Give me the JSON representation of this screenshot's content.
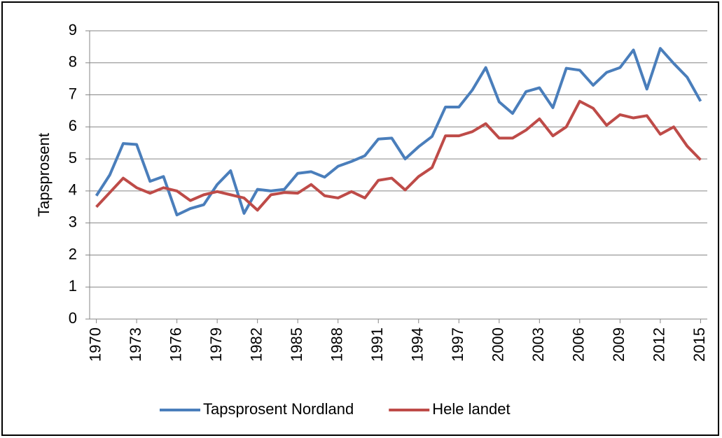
{
  "chart_data": {
    "type": "line",
    "y_label": "Tapsprosent",
    "x": [
      1970,
      1971,
      1972,
      1973,
      1974,
      1975,
      1976,
      1977,
      1978,
      1979,
      1980,
      1981,
      1982,
      1983,
      1984,
      1985,
      1986,
      1987,
      1988,
      1989,
      1990,
      1991,
      1992,
      1993,
      1994,
      1995,
      1996,
      1997,
      1998,
      1999,
      2000,
      2001,
      2002,
      2003,
      2004,
      2005,
      2006,
      2007,
      2008,
      2009,
      2010,
      2011,
      2012,
      2013,
      2014,
      2015
    ],
    "series": [
      {
        "name": "Tapsprosent Nordland",
        "color": "#4a7ebb",
        "values": [
          3.85,
          4.5,
          5.48,
          5.45,
          4.3,
          4.45,
          3.25,
          3.45,
          3.57,
          4.2,
          4.63,
          3.3,
          4.05,
          4.0,
          4.05,
          4.55,
          4.6,
          4.43,
          4.77,
          4.92,
          5.1,
          5.62,
          5.65,
          5.0,
          5.38,
          5.7,
          6.62,
          6.62,
          7.15,
          7.85,
          6.78,
          6.42,
          7.1,
          7.22,
          6.6,
          7.83,
          7.77,
          7.3,
          7.7,
          7.85,
          8.4,
          7.18,
          8.45,
          7.98,
          7.55,
          6.8
        ]
      },
      {
        "name": "Hele landet",
        "color": "#be4b48",
        "values": [
          3.5,
          3.95,
          4.4,
          4.1,
          3.93,
          4.1,
          4.0,
          3.7,
          3.88,
          3.98,
          3.88,
          3.78,
          3.4,
          3.88,
          3.95,
          3.93,
          4.2,
          3.85,
          3.78,
          3.98,
          3.78,
          4.33,
          4.4,
          4.03,
          4.45,
          4.73,
          5.72,
          5.72,
          5.85,
          6.1,
          5.65,
          5.65,
          5.9,
          6.25,
          5.72,
          6.0,
          6.8,
          6.58,
          6.05,
          6.38,
          6.28,
          6.35,
          5.77,
          6.0,
          5.4,
          4.97
        ]
      }
    ],
    "xlim": [
      1969.5,
      2015.5
    ],
    "xticks": [
      1970,
      1973,
      1976,
      1979,
      1982,
      1985,
      1988,
      1991,
      1994,
      1997,
      2000,
      2003,
      2006,
      2009,
      2012,
      2015
    ],
    "ylim": [
      0,
      9
    ],
    "yticks": [
      0,
      1,
      2,
      3,
      4,
      5,
      6,
      7,
      8,
      9
    ],
    "grid": true,
    "legend": "bottom"
  }
}
